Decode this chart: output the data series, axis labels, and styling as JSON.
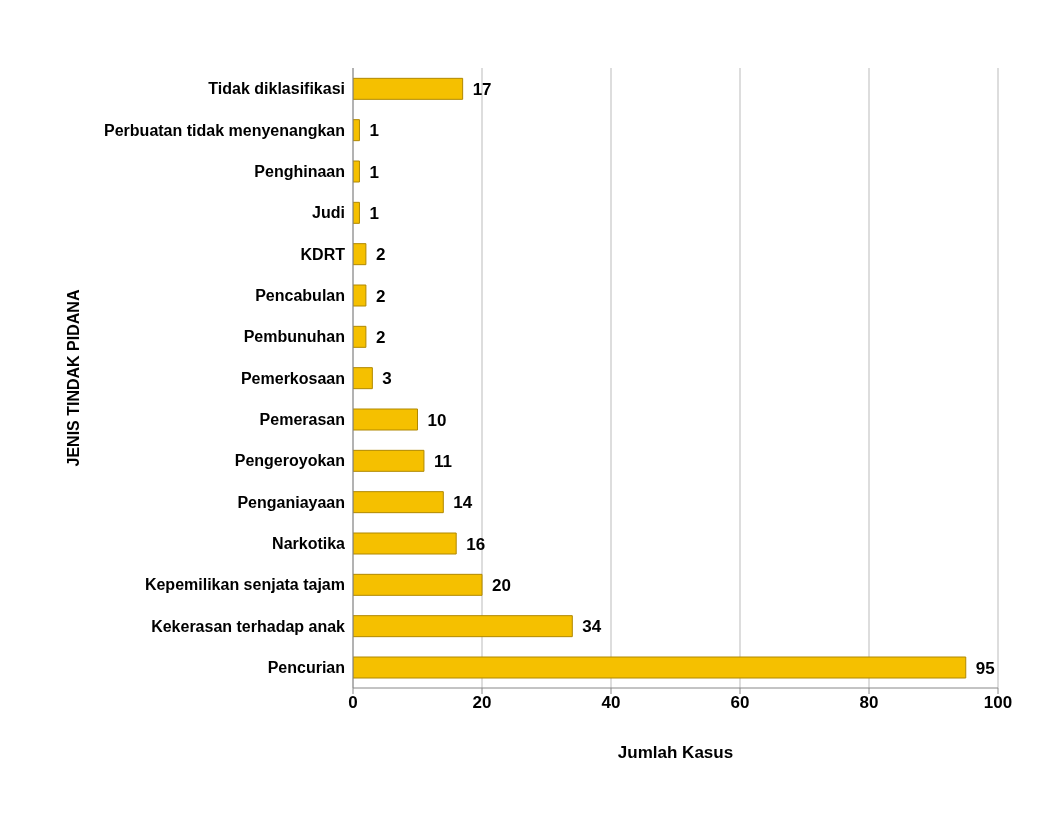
{
  "chart_data": {
    "type": "bar",
    "orientation": "horizontal",
    "categories": [
      "Tidak diklasifikasi",
      "Perbuatan tidak menyenangkan",
      "Penghinaan",
      "Judi",
      "KDRT",
      "Pencabulan",
      "Pembunuhan",
      "Pemerkosaan",
      "Pemerasan",
      "Pengeroyokan",
      "Penganiayaan",
      "Narkotika",
      "Kepemilikan senjata tajam",
      "Kekerasan terhadap anak",
      "Pencurian"
    ],
    "values": [
      17,
      1,
      1,
      1,
      2,
      2,
      2,
      3,
      10,
      11,
      14,
      16,
      20,
      34,
      95
    ],
    "color": "#f5c000",
    "xlim": [
      0,
      100
    ],
    "xticks": [
      0,
      20,
      40,
      60,
      80,
      100
    ],
    "xlabel": "Jumlah Kasus",
    "ylabel": "JENIS TINDAK PIDANA",
    "grid": "x",
    "data_labels": true
  }
}
